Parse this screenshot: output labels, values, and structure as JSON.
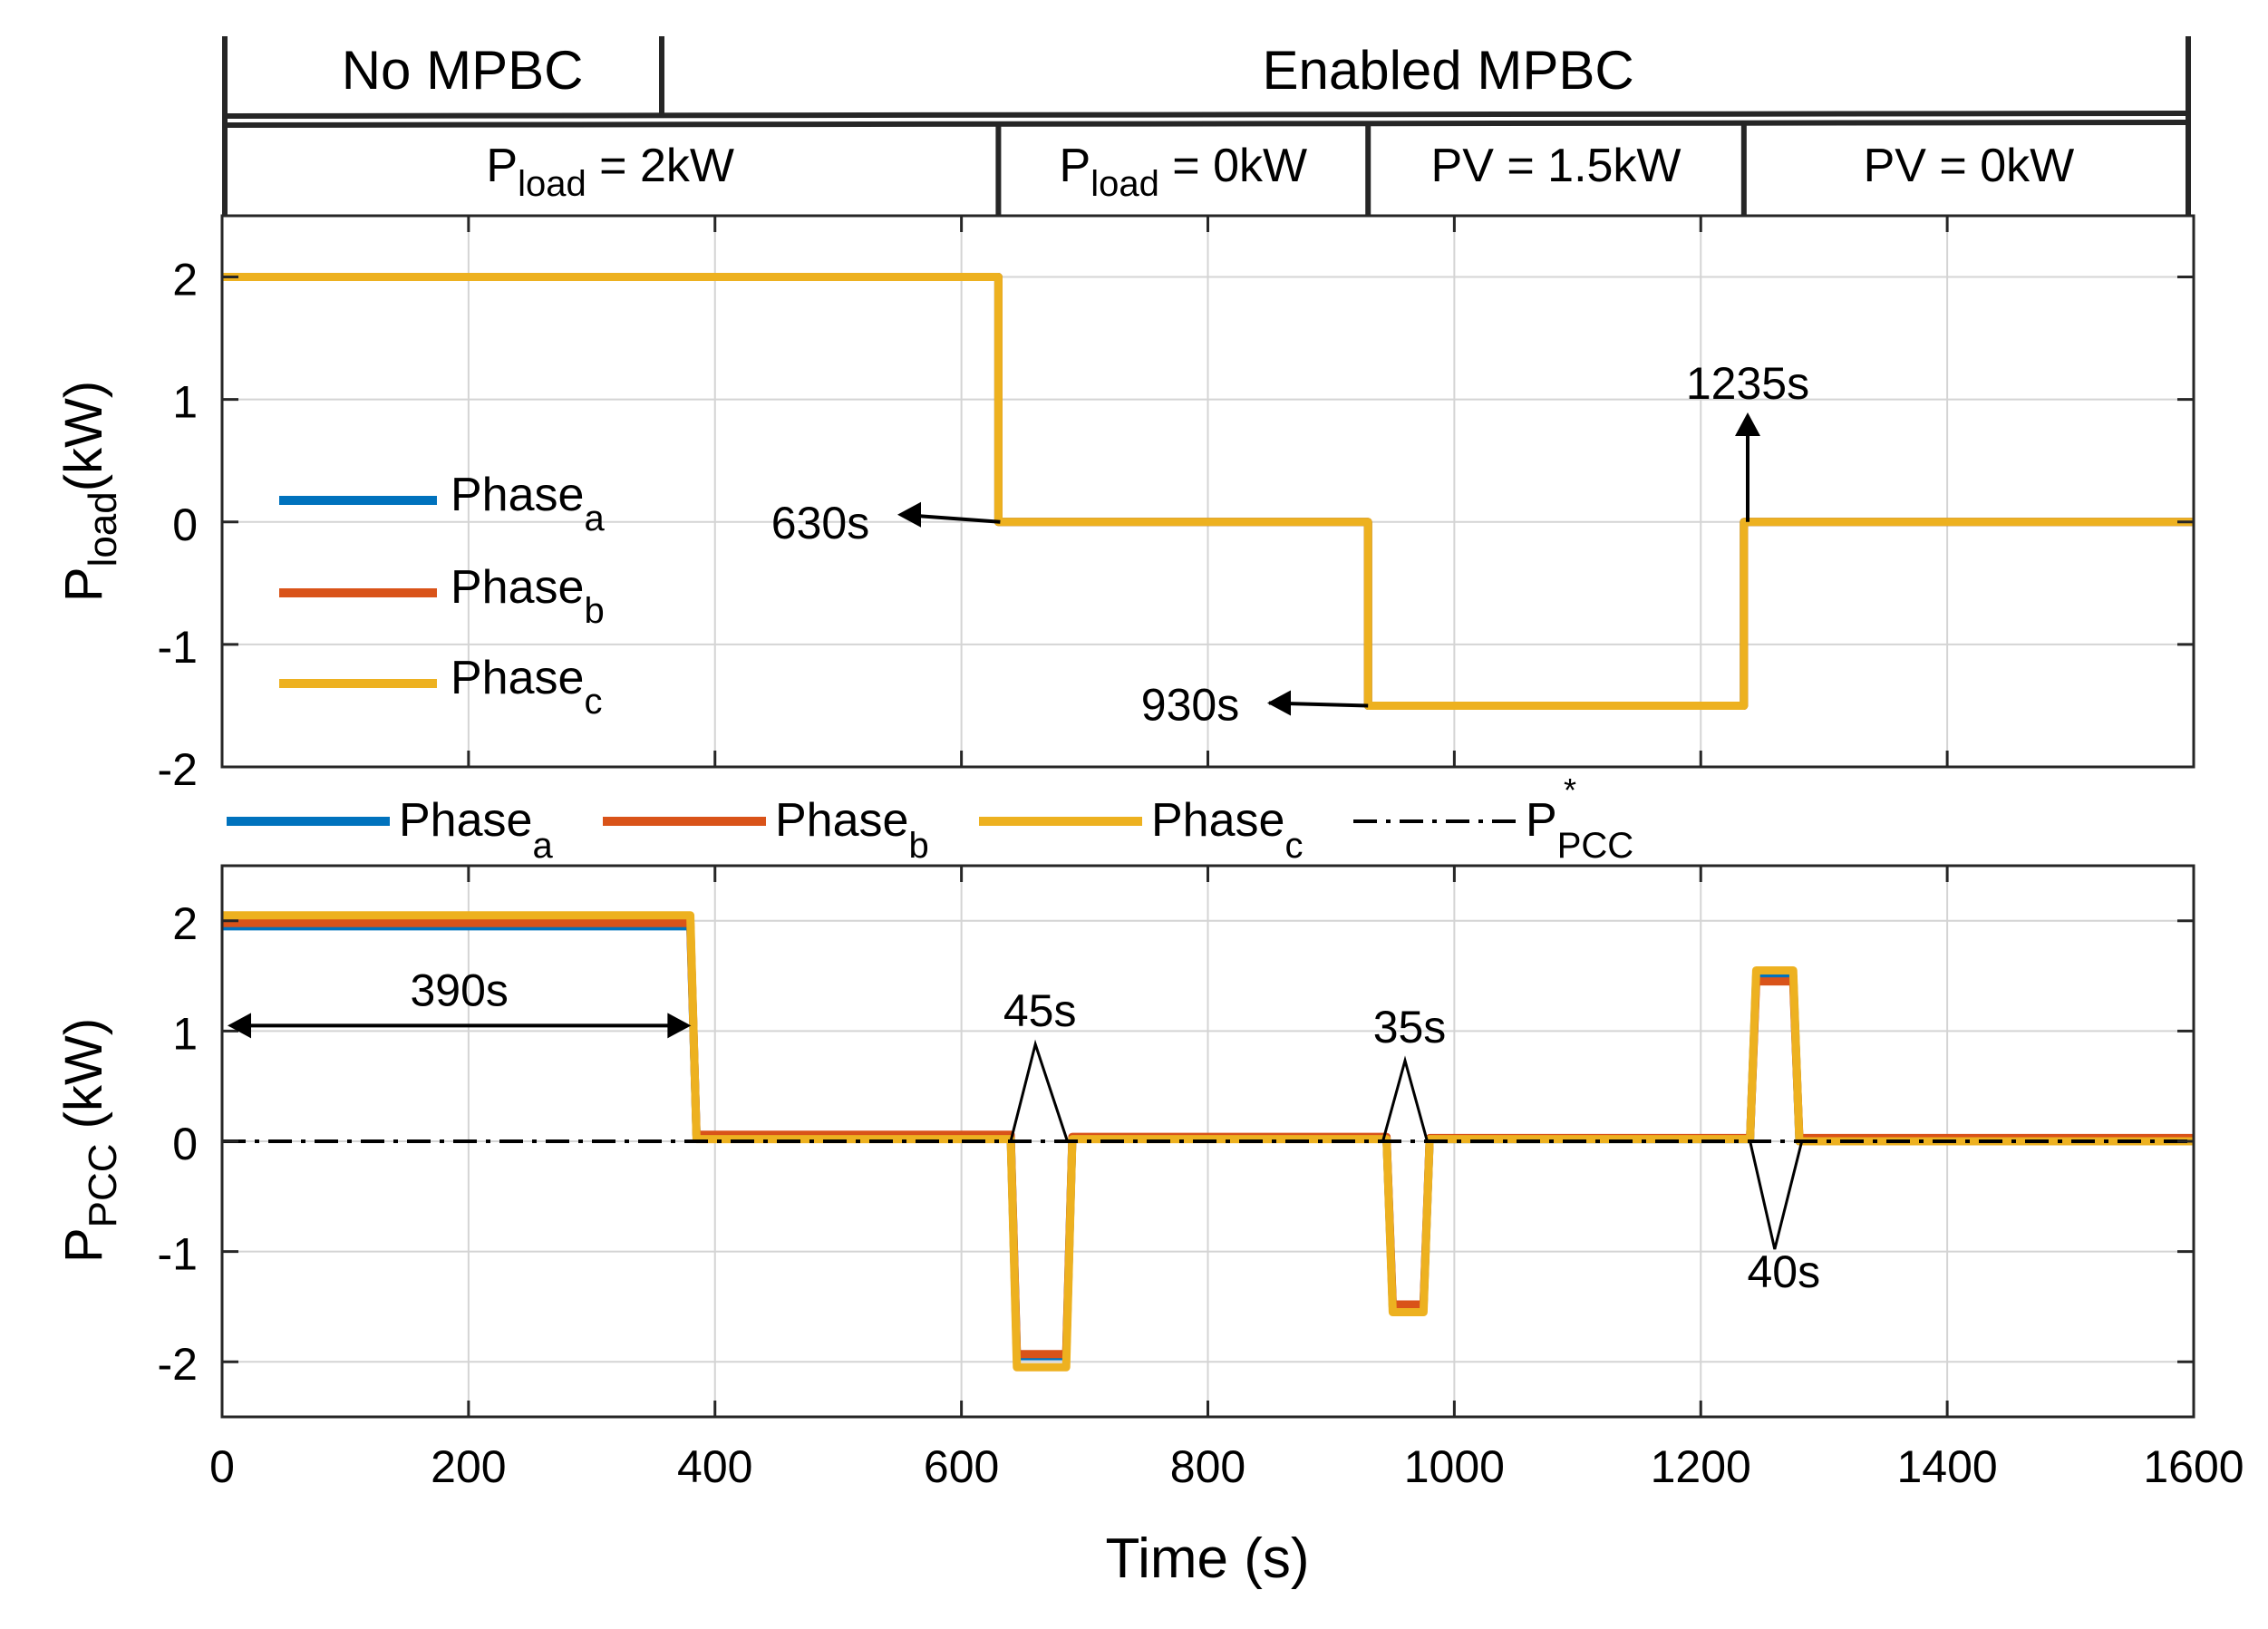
{
  "colors": {
    "phase_a": "#0072BD",
    "phase_b": "#D95319",
    "phase_c": "#EDB120",
    "ref": "#000000"
  },
  "header": {
    "row1": [
      {
        "label": "No MPBC",
        "x0": 0,
        "x1": 390
      },
      {
        "label": "Enabled MPBC",
        "x0": 390,
        "x1": 1600
      }
    ],
    "row2": [
      {
        "main": "P",
        "sub": "load",
        "rest": " = 2kW",
        "x0": 0,
        "x1": 630
      },
      {
        "main": "P",
        "sub": "load",
        "rest": " = 0kW",
        "x0": 630,
        "x1": 930
      },
      {
        "main": "PV = 1.5kW",
        "sub": "",
        "rest": "",
        "x0": 930,
        "x1": 1235
      },
      {
        "main": "PV = 0kW",
        "sub": "",
        "rest": "",
        "x0": 1235,
        "x1": 1600
      }
    ]
  },
  "chart_data": [
    {
      "type": "line",
      "ylabel": {
        "main": "P",
        "sub": "load",
        "rest": "(kW)"
      },
      "xlim": [
        0,
        1600
      ],
      "ylim": [
        -2,
        2.5
      ],
      "yticks": [
        "2",
        "1",
        "0",
        "-1",
        "-2"
      ],
      "ytick_values": [
        2,
        1,
        0,
        -1,
        -2
      ],
      "xtick_values": [
        0,
        200,
        400,
        600,
        800,
        1000,
        1200,
        1400,
        1600
      ],
      "grid": true,
      "legend": {
        "placement": "left",
        "entries": [
          {
            "main": "Phase",
            "sub": "a"
          },
          {
            "main": "Phase",
            "sub": "b"
          },
          {
            "main": "Phase",
            "sub": "c"
          }
        ]
      },
      "series": [
        {
          "x": [
            0,
            630,
            630,
            930,
            930,
            1235,
            1235,
            1600
          ],
          "y": [
            2,
            2,
            0,
            0,
            -1.5,
            -1.5,
            0,
            0
          ]
        },
        {
          "x": [
            0,
            630,
            630,
            930,
            930,
            1235,
            1235,
            1600
          ],
          "y": [
            2,
            2,
            0,
            0,
            -1.5,
            -1.5,
            0,
            0
          ]
        },
        {
          "x": [
            0,
            630,
            630,
            930,
            930,
            1235,
            1235,
            1600
          ],
          "y": [
            2,
            2,
            0,
            0,
            -1.5,
            -1.5,
            0,
            0
          ]
        }
      ],
      "annotations": [
        {
          "text": "630s",
          "x": 630,
          "y": 0
        },
        {
          "text": "930s",
          "x": 930,
          "y": -1.5
        },
        {
          "text": "1235s",
          "x": 1235,
          "y": 0
        }
      ]
    },
    {
      "type": "line",
      "ylabel": {
        "main": "P",
        "sub": "PCC",
        "rest": " (kW)"
      },
      "xlabel": "Time (s)",
      "xlim": [
        0,
        1600
      ],
      "ylim": [
        -2.5,
        2.5
      ],
      "yticks": [
        "2",
        "1",
        "0",
        "-1",
        "-2"
      ],
      "ytick_values": [
        2,
        1,
        0,
        -1,
        -2
      ],
      "xticks": [
        "0",
        "200",
        "400",
        "600",
        "800",
        "1000",
        "1200",
        "1400",
        "1600"
      ],
      "xtick_values": [
        0,
        200,
        400,
        600,
        800,
        1000,
        1200,
        1400,
        1600
      ],
      "grid": true,
      "legend": {
        "placement": "top",
        "entries": [
          {
            "main": "Phase",
            "sub": "a",
            "sup": ""
          },
          {
            "main": "Phase",
            "sub": "b",
            "sup": ""
          },
          {
            "main": "Phase",
            "sub": "c",
            "sup": ""
          },
          {
            "main": "P",
            "sub": "PCC",
            "sup": "*"
          }
        ]
      },
      "series": [
        {
          "x": [
            0,
            380,
            385,
            640,
            645,
            685,
            690,
            945,
            950,
            975,
            980,
            1240,
            1245,
            1275,
            1280,
            1600
          ],
          "y": [
            1.95,
            1.95,
            0.05,
            0.05,
            -1.95,
            -1.95,
            0.03,
            0.03,
            -1.5,
            -1.5,
            0.02,
            0.02,
            1.5,
            1.5,
            0.0,
            0.0
          ]
        },
        {
          "x": [
            0,
            380,
            385,
            640,
            645,
            685,
            690,
            945,
            950,
            975,
            980,
            1240,
            1245,
            1275,
            1280,
            1600
          ],
          "y": [
            1.98,
            1.98,
            0.06,
            0.06,
            -1.93,
            -1.93,
            0.04,
            0.04,
            -1.48,
            -1.48,
            0.03,
            0.03,
            1.45,
            1.45,
            0.03,
            0.03
          ]
        },
        {
          "x": [
            0,
            380,
            385,
            640,
            645,
            685,
            690,
            945,
            950,
            975,
            980,
            1240,
            1245,
            1275,
            1280,
            1600
          ],
          "y": [
            2.05,
            2.05,
            0.02,
            0.02,
            -2.05,
            -2.05,
            0.02,
            0.02,
            -1.55,
            -1.55,
            0.02,
            0.02,
            1.55,
            1.55,
            0.0,
            0.0
          ]
        },
        {
          "x": [
            0,
            1600
          ],
          "y": [
            0,
            0
          ]
        }
      ],
      "annotations": [
        {
          "text": "390s",
          "x0": 0,
          "x1": 385,
          "y": 1.05
        },
        {
          "text": "45s",
          "x": 660,
          "y": 1.0
        },
        {
          "text": "35s",
          "x": 960,
          "y": 0.85
        },
        {
          "text": "40s",
          "x": 1260,
          "y": -1.1
        }
      ]
    }
  ]
}
